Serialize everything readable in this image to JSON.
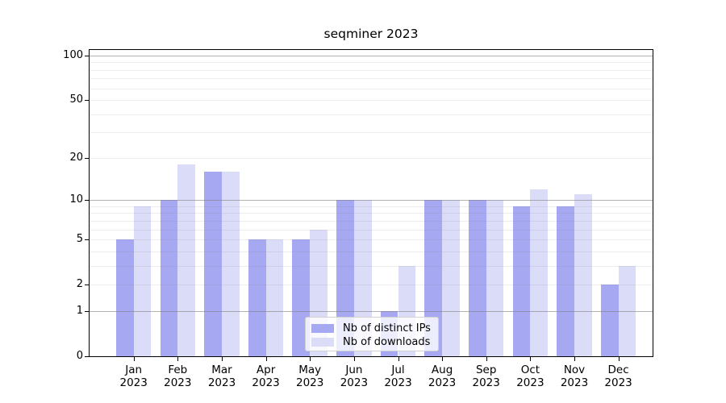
{
  "chart_data": {
    "type": "bar",
    "title": "seqminer 2023",
    "x_tick_labels": [
      [
        "Jan",
        "2023"
      ],
      [
        "Feb",
        "2023"
      ],
      [
        "Mar",
        "2023"
      ],
      [
        "Apr",
        "2023"
      ],
      [
        "May",
        "2023"
      ],
      [
        "Jun",
        "2023"
      ],
      [
        "Jul",
        "2023"
      ],
      [
        "Aug",
        "2023"
      ],
      [
        "Sep",
        "2023"
      ],
      [
        "Oct",
        "2023"
      ],
      [
        "Nov",
        "2023"
      ],
      [
        "Dec",
        "2023"
      ]
    ],
    "series": [
      {
        "name": "Nb of distinct IPs",
        "color": "#a7a8f2",
        "values": [
          5,
          10,
          16,
          5,
          5,
          10,
          1,
          10,
          10,
          9,
          9,
          2
        ]
      },
      {
        "name": "Nb of downloads",
        "color": "#dadcf8",
        "values": [
          9,
          18,
          16,
          5,
          6,
          10,
          3,
          10,
          10,
          12,
          11,
          3
        ]
      }
    ],
    "y_scale": "log1p",
    "ylim": [
      0,
      112
    ],
    "y_ticks": [
      0,
      1,
      2,
      5,
      10,
      20,
      50,
      100
    ],
    "grid": {
      "major_lines": [
        1,
        10,
        100
      ],
      "minor_lines": [
        2,
        3,
        4,
        5,
        6,
        7,
        8,
        9,
        20,
        30,
        40,
        50,
        60,
        70,
        80,
        90
      ],
      "major_color": "rgba(128,128,128,0.60)",
      "minor_color": "rgba(128,128,128,0.14)"
    },
    "legend": {
      "position": "lower center"
    }
  }
}
